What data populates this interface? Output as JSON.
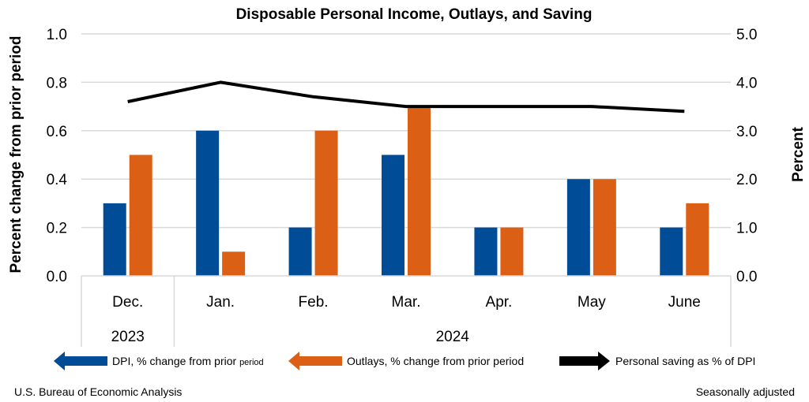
{
  "chart_data": {
    "type": "bar",
    "title": "Disposable Personal Income, Outlays, and Saving",
    "categories": [
      "Dec.",
      "Jan.",
      "Feb.",
      "Mar.",
      "Apr.",
      "May",
      "June"
    ],
    "year_groups": [
      {
        "label": "2023",
        "categories": [
          "Dec."
        ]
      },
      {
        "label": "2024",
        "categories": [
          "Jan.",
          "Feb.",
          "Mar.",
          "Apr.",
          "May",
          "June"
        ]
      }
    ],
    "series": [
      {
        "name": "DPI, % change from prior period",
        "type": "bar",
        "axis": "left",
        "color": "#004C97",
        "values": [
          0.3,
          0.6,
          0.2,
          0.5,
          0.2,
          0.4,
          0.2
        ]
      },
      {
        "name": "Outlays, % change from prior period",
        "type": "bar",
        "axis": "left",
        "color": "#DB6015",
        "values": [
          0.5,
          0.1,
          0.6,
          0.7,
          0.2,
          0.4,
          0.3
        ]
      },
      {
        "name": "Personal saving as % of DPI",
        "type": "line",
        "axis": "right",
        "color": "#000000",
        "values": [
          3.6,
          4.0,
          3.7,
          3.5,
          3.5,
          3.5,
          3.4
        ]
      }
    ],
    "ylabel": "Percent change from prior period",
    "ylabel_right": "Percent",
    "ylim": [
      0,
      1.0
    ],
    "ylim_right": [
      0,
      5.0
    ],
    "yticks": [
      "0.0",
      "0.2",
      "0.4",
      "0.6",
      "0.8",
      "1.0"
    ],
    "yticks_right": [
      "0.0",
      "1.0",
      "2.0",
      "3.0",
      "4.0",
      "5.0"
    ],
    "grid": true,
    "legend_position": "bottom",
    "legend": {
      "dpi_main": "DPI, % change from prior ",
      "dpi_small": "period",
      "outlays": "Outlays, % change from prior period",
      "saving": "Personal saving as % of DPI"
    }
  },
  "footer": {
    "source": "U.S. Bureau of Economic Analysis",
    "note": "Seasonally adjusted"
  }
}
